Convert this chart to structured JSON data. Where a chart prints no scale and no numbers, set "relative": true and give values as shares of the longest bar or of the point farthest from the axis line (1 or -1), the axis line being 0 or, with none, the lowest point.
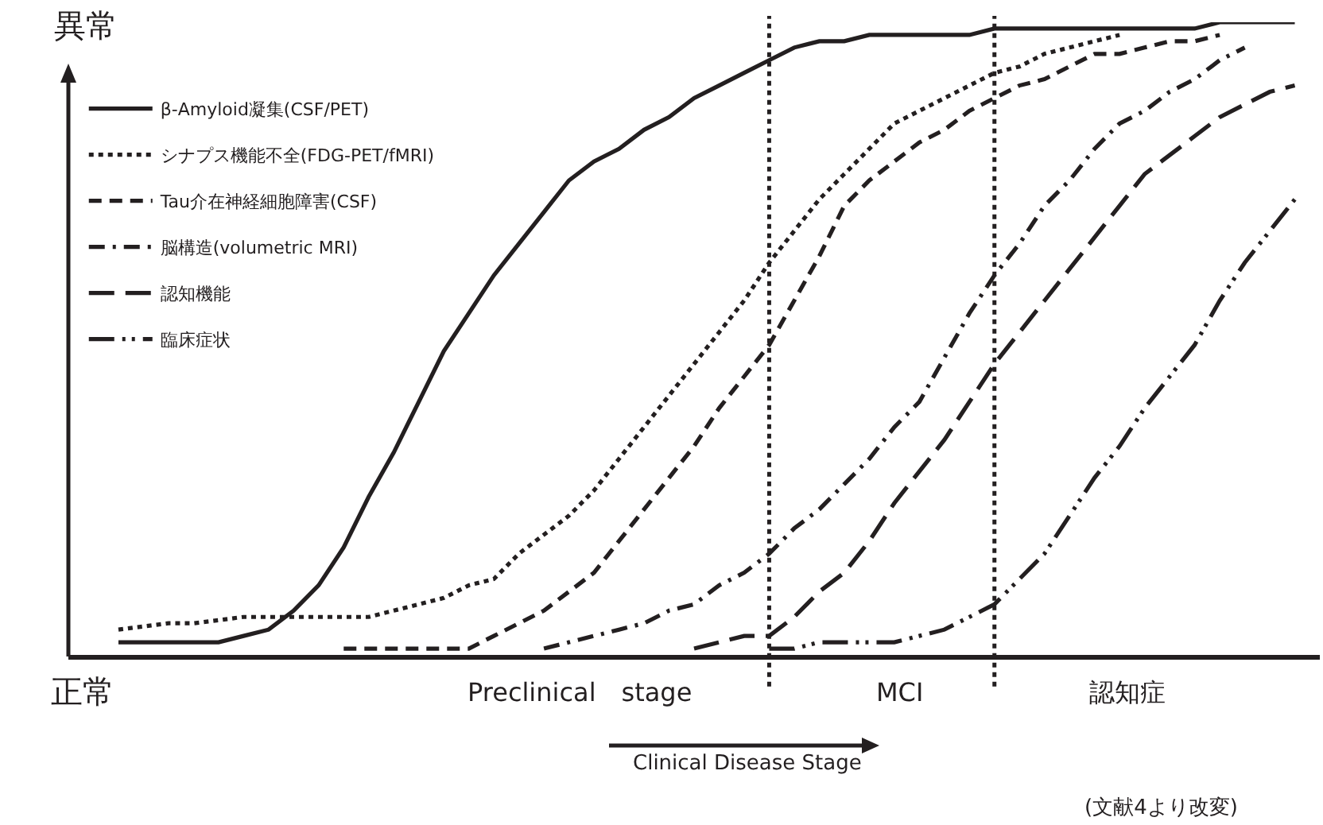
{
  "chart_data": {
    "type": "line",
    "relative": true,
    "xlabel": "Clinical Disease Stage",
    "grid": false,
    "legend": "top left",
    "categories": [
      null,
      null,
      null,
      null,
      null,
      null,
      null,
      null,
      null,
      null,
      null,
      null,
      null,
      null,
      null,
      null,
      null,
      null,
      null,
      null,
      null,
      null,
      null,
      null,
      null,
      null,
      null,
      null,
      null,
      null,
      null,
      null,
      null,
      null,
      null,
      null,
      null,
      null,
      null,
      null,
      null,
      null,
      null,
      null,
      null,
      null,
      null,
      null,
      null,
      null,
      null
    ],
    "annotations": [
      "異常",
      "正常",
      "Preclinical　stage",
      "MCI",
      "認知症",
      "(文献4より改変)"
    ],
    "series": [
      {
        "name": "β-Amyloid凝集(CSF/PET)",
        "color": "#231f20",
        "line_style": "solid",
        "values": [
          null,
          null,
          0.02,
          0.02,
          0.02,
          0.02,
          0.02,
          0.03,
          0.04,
          0.07,
          0.11,
          0.17,
          0.25,
          0.32,
          0.4,
          0.48,
          0.54,
          0.6,
          0.65,
          0.7,
          0.75,
          0.78,
          0.8,
          0.83,
          0.85,
          0.88,
          0.9,
          0.92,
          0.94,
          0.96,
          0.97,
          0.97,
          0.98,
          0.98,
          0.98,
          0.98,
          0.98,
          0.99,
          0.99,
          0.99,
          0.99,
          0.99,
          0.99,
          0.99,
          0.99,
          0.99,
          1,
          1,
          1,
          1,
          null
        ]
      },
      {
        "name": "シナプス機能不全(FDG-PET/fMRI)",
        "color": "#231f20",
        "line_style": "dotted",
        "values": [
          null,
          null,
          0.04,
          0.045,
          0.05,
          0.05,
          0.055,
          0.06,
          0.06,
          0.06,
          0.06,
          0.06,
          0.06,
          0.07,
          0.08,
          0.09,
          0.11,
          0.12,
          0.16,
          0.19,
          0.22,
          0.26,
          0.31,
          0.36,
          0.41,
          0.46,
          0.51,
          0.56,
          0.62,
          0.67,
          0.72,
          0.76,
          0.8,
          0.84,
          0.86,
          0.88,
          0.9,
          0.92,
          0.93,
          0.95,
          0.96,
          0.97,
          0.98,
          null,
          null,
          null,
          null,
          null,
          null,
          null,
          null
        ]
      },
      {
        "name": "Tau介在神経細胞障害(CSF)",
        "color": "#231f20",
        "line_style": "dashed",
        "values": [
          null,
          null,
          null,
          null,
          null,
          null,
          null,
          null,
          null,
          null,
          null,
          0.01,
          0.01,
          0.01,
          0.01,
          0.01,
          0.01,
          0.03,
          0.05,
          0.07,
          0.1,
          0.13,
          0.18,
          0.23,
          0.28,
          0.33,
          0.39,
          0.44,
          0.49,
          0.56,
          0.63,
          0.71,
          0.75,
          0.78,
          0.81,
          0.83,
          0.86,
          0.88,
          0.9,
          0.91,
          0.93,
          0.95,
          0.95,
          0.96,
          0.97,
          0.97,
          0.98,
          null,
          null,
          null,
          null
        ]
      },
      {
        "name": "脳構造(volumetric MRI)",
        "color": "#231f20",
        "line_style": "dashdot",
        "values": [
          null,
          null,
          null,
          null,
          null,
          null,
          null,
          null,
          null,
          null,
          null,
          null,
          null,
          null,
          null,
          null,
          null,
          null,
          null,
          0.01,
          0.02,
          0.03,
          0.04,
          0.05,
          0.07,
          0.08,
          0.11,
          0.13,
          0.16,
          0.2,
          0.23,
          0.27,
          0.31,
          0.36,
          0.4,
          0.47,
          0.54,
          0.6,
          0.65,
          0.71,
          0.75,
          0.8,
          0.84,
          0.86,
          0.89,
          0.91,
          0.94,
          0.96,
          null,
          null,
          null
        ]
      },
      {
        "name": "認知機能",
        "color": "#231f20",
        "line_style": "longdash",
        "values": [
          null,
          null,
          null,
          null,
          null,
          null,
          null,
          null,
          null,
          null,
          null,
          null,
          null,
          null,
          null,
          null,
          null,
          null,
          null,
          null,
          null,
          null,
          null,
          null,
          null,
          0.01,
          0.02,
          0.03,
          0.03,
          0.06,
          0.1,
          0.13,
          0.18,
          0.24,
          0.29,
          0.34,
          0.4,
          0.46,
          0.51,
          0.56,
          0.61,
          0.66,
          0.71,
          0.76,
          0.79,
          0.82,
          0.85,
          0.87,
          0.89,
          0.9,
          null
        ]
      },
      {
        "name": "臨床症状",
        "color": "#231f20",
        "line_style": "longdashdotdot",
        "values": [
          null,
          null,
          null,
          null,
          null,
          null,
          null,
          null,
          null,
          null,
          null,
          null,
          null,
          null,
          null,
          null,
          null,
          null,
          null,
          null,
          null,
          null,
          null,
          null,
          null,
          null,
          null,
          null,
          0.01,
          0.01,
          0.02,
          0.02,
          0.02,
          0.02,
          0.03,
          0.04,
          0.06,
          0.08,
          0.12,
          0.16,
          0.22,
          0.28,
          0.33,
          0.39,
          0.44,
          0.49,
          0.56,
          0.62,
          0.67,
          0.72,
          null
        ]
      }
    ]
  }
}
